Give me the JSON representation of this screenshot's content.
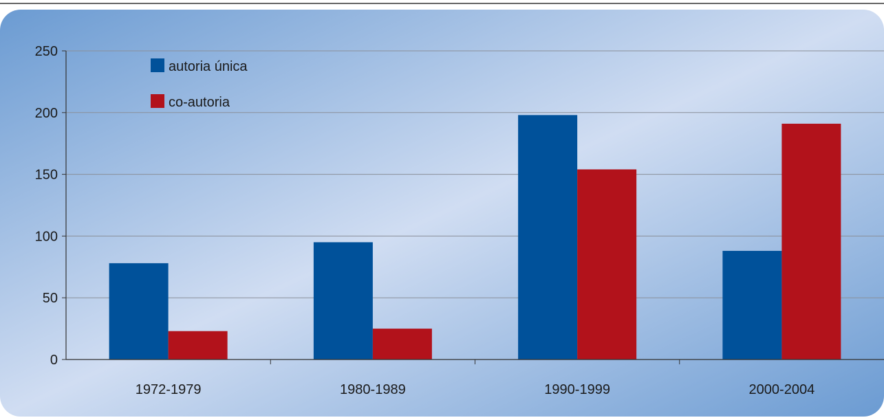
{
  "chart_data": {
    "type": "bar",
    "title": "",
    "xlabel": "",
    "ylabel": "",
    "categories": [
      "1972-1979",
      "1980-1989",
      "1990-1999",
      "2000-2004"
    ],
    "series": [
      {
        "name": "autoria única",
        "color": "#00519a",
        "values": [
          78,
          95,
          198,
          88
        ]
      },
      {
        "name": "co-autoria",
        "color": "#b2121b",
        "values": [
          23,
          25,
          154,
          191
        ]
      }
    ],
    "ylim": [
      0,
      250
    ],
    "yticks": [
      "0",
      "50",
      "100",
      "150",
      "200",
      "250"
    ],
    "grid": true,
    "legend_position": "top-left",
    "background_colors": [
      "#6b9bd2",
      "#d0ddf2"
    ]
  }
}
